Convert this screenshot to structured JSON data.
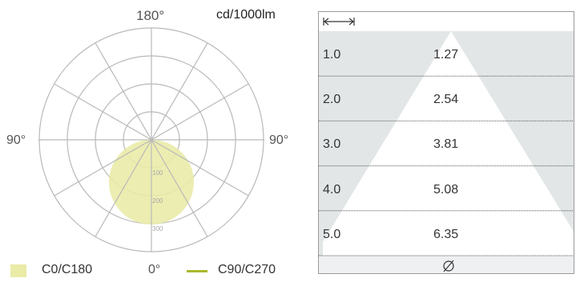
{
  "polar": {
    "top_angle": "180°",
    "left_angle": "90°",
    "right_angle": "90°",
    "bottom_angle": "0°",
    "unit": "cd/1000lm",
    "ring_labels": [
      "100",
      "200",
      "300"
    ],
    "colors": {
      "c0_c180": "#e9eba6",
      "c90_c270": "#aab82c",
      "grid": "#b9b9b9"
    }
  },
  "legend": {
    "c0_label": "C0/C180",
    "c90_label": "C90/C270"
  },
  "cone": {
    "icons": {
      "width": "horizontal-arrow-icon",
      "diameter": "diameter-icon"
    },
    "rows": [
      {
        "distance": "1.0",
        "diameter": "1.27"
      },
      {
        "distance": "2.0",
        "diameter": "2.54"
      },
      {
        "distance": "3.0",
        "diameter": "3.81"
      },
      {
        "distance": "4.0",
        "diameter": "5.08"
      },
      {
        "distance": "5.0",
        "diameter": "6.35"
      }
    ],
    "colors": {
      "shade": "#e2e6e7",
      "divider": "#555555"
    }
  }
}
